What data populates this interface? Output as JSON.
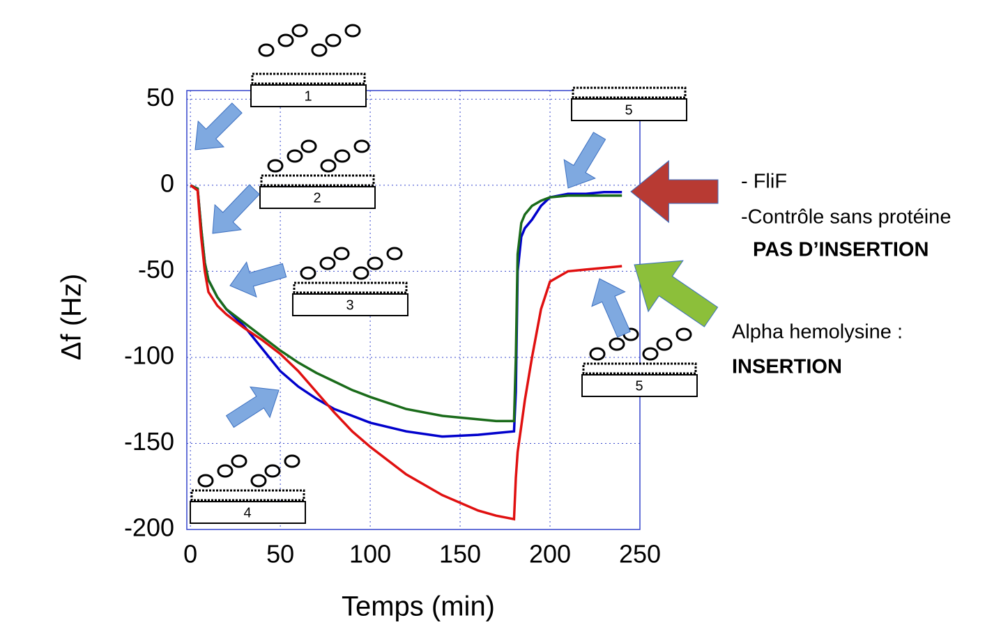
{
  "chart_data": {
    "type": "line",
    "x_label": "Temps (min)",
    "y_label": "Δf (Hz)",
    "xlim": [
      -2,
      250
    ],
    "ylim": [
      -200,
      55
    ],
    "xticks": [
      0,
      50,
      100,
      150,
      200,
      250
    ],
    "yticks": [
      50,
      0,
      -50,
      -100,
      -150,
      -200
    ],
    "grid": true,
    "x": [
      0,
      4,
      6,
      8,
      10,
      15,
      20,
      30,
      40,
      50,
      60,
      70,
      80,
      90,
      100,
      120,
      140,
      160,
      170,
      180,
      181,
      182,
      184,
      186,
      190,
      195,
      200,
      210,
      220,
      230,
      240
    ],
    "series": [
      {
        "color": "#0000cc",
        "values": [
          0,
          -2,
          -25,
          -45,
          -55,
          -65,
          -72,
          -82,
          -95,
          -108,
          -117,
          -124,
          -130,
          -134,
          -138,
          -143,
          -146,
          -145,
          -144,
          -143,
          -120,
          -50,
          -30,
          -25,
          -20,
          -12,
          -7,
          -5,
          -5,
          -4,
          -4
        ]
      },
      {
        "color": "#1a6b1a",
        "values": [
          0,
          -2,
          -25,
          -45,
          -55,
          -65,
          -72,
          -80,
          -88,
          -96,
          -103,
          -109,
          -114,
          -119,
          -123,
          -130,
          -134,
          -136,
          -137,
          -137,
          -100,
          -40,
          -22,
          -17,
          -12,
          -9,
          -7,
          -6,
          -6,
          -6,
          -6
        ]
      },
      {
        "color": "#e01010",
        "values": [
          0,
          -3,
          -30,
          -50,
          -62,
          -70,
          -75,
          -83,
          -90,
          -98,
          -108,
          -120,
          -132,
          -143,
          -152,
          -168,
          -180,
          -189,
          -192,
          -194,
          -170,
          -155,
          -140,
          -125,
          -100,
          -72,
          -56,
          -50,
          -49,
          -48,
          -47
        ]
      }
    ],
    "scheme_labels": [
      "1",
      "2",
      "3",
      "4",
      "5",
      "5"
    ],
    "annotations": {
      "flif": "- FliF",
      "control": "-Contrôle sans protéine",
      "no_insertion": "PAS D’INSERTION",
      "alpha": "Alpha hemolysine :",
      "insertion": "INSERTION"
    }
  }
}
